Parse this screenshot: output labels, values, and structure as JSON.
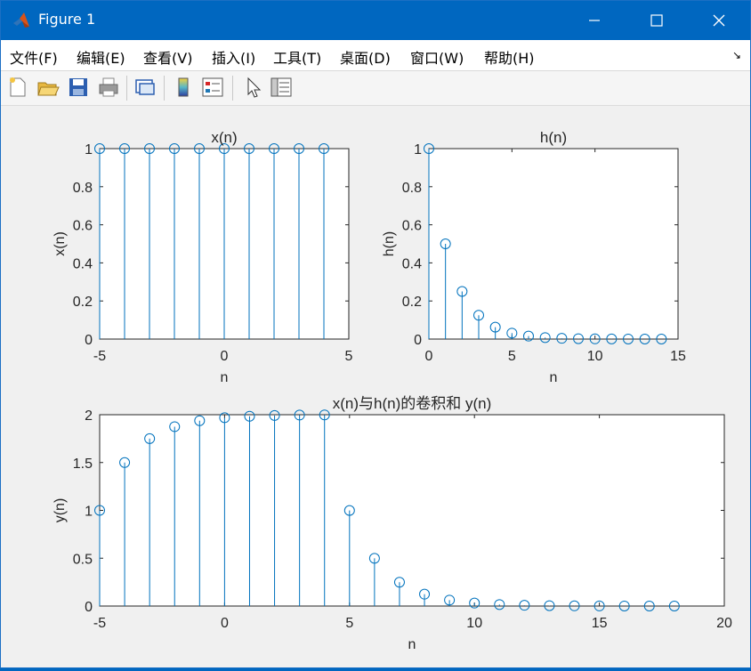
{
  "window": {
    "title": "Figure 1"
  },
  "menu": [
    "文件(F)",
    "编辑(E)",
    "查看(V)",
    "插入(I)",
    "工具(T)",
    "桌面(D)",
    "窗口(W)",
    "帮助(H)"
  ],
  "toolbar_icons": [
    "new-figure-icon",
    "open-file-icon",
    "save-icon",
    "print-icon",
    "link-plot-icon",
    "colorbar-icon",
    "legend-icon",
    "pointer-icon",
    "property-inspector-icon"
  ],
  "colors": {
    "stem": "#0072bd",
    "titlebar": "#0067c0",
    "figure_bg": "#f0f0f0"
  },
  "chart_data": [
    {
      "type": "stem",
      "title": "x(n)",
      "xlabel": "n",
      "ylabel": "x(n)",
      "xlim": [
        -5,
        5
      ],
      "ylim": [
        0,
        1
      ],
      "xticks": [
        "-5",
        "0",
        "5"
      ],
      "yticks": [
        "0",
        "0.2",
        "0.4",
        "0.6",
        "0.8",
        "1"
      ],
      "x": [
        -5,
        -4,
        -3,
        -2,
        -1,
        0,
        1,
        2,
        3,
        4
      ],
      "y": [
        1,
        1,
        1,
        1,
        1,
        1,
        1,
        1,
        1,
        1
      ]
    },
    {
      "type": "stem",
      "title": "h(n)",
      "xlabel": "n",
      "ylabel": "h(n)",
      "xlim": [
        0,
        15
      ],
      "ylim": [
        0,
        1
      ],
      "xticks": [
        "0",
        "5",
        "10",
        "15"
      ],
      "yticks": [
        "0",
        "0.2",
        "0.4",
        "0.6",
        "0.8",
        "1"
      ],
      "x": [
        0,
        1,
        2,
        3,
        4,
        5,
        6,
        7,
        8,
        9,
        10,
        11,
        12,
        13,
        14
      ],
      "y": [
        1,
        0.5,
        0.25,
        0.125,
        0.0625,
        0.03125,
        0.015625,
        0.0078,
        0.0039,
        0.002,
        0.001,
        0.0005,
        0.0002,
        0.0001,
        6e-05
      ]
    },
    {
      "type": "stem",
      "title": "x(n)与h(n)的卷积和 y(n)",
      "xlabel": "n",
      "ylabel": "y(n)",
      "xlim": [
        -5,
        20
      ],
      "ylim": [
        0,
        2
      ],
      "xticks": [
        "-5",
        "0",
        "5",
        "10",
        "15",
        "20"
      ],
      "yticks": [
        "0",
        "0.5",
        "1",
        "1.5",
        "2"
      ],
      "x": [
        -5,
        -4,
        -3,
        -2,
        -1,
        0,
        1,
        2,
        3,
        4,
        5,
        6,
        7,
        8,
        9,
        10,
        11,
        12,
        13,
        14,
        15,
        16,
        17,
        18
      ],
      "y": [
        1,
        1.5,
        1.75,
        1.875,
        1.9375,
        1.96875,
        1.984,
        1.992,
        1.996,
        1.998,
        0.999,
        0.499,
        0.249,
        0.124,
        0.062,
        0.031,
        0.0155,
        0.0077,
        0.0038,
        0.0019,
        0.0009,
        0.0004,
        0.0002,
        0.0001
      ]
    }
  ]
}
